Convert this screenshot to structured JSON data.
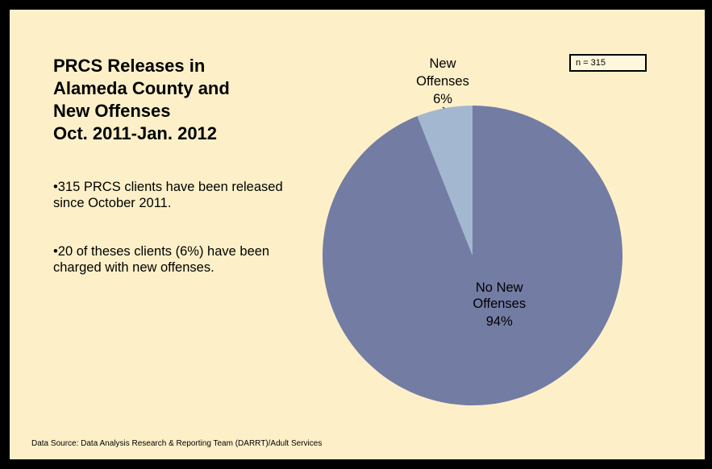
{
  "slide": {
    "title_lines": [
      "PRCS Releases in",
      "Alameda County and",
      "New Offenses",
      "Oct. 2011-Jan. 2012"
    ],
    "bullets": [
      "•315 PRCS clients have been released since October 2011.",
      "•20 of theses clients (6%) have been charged with new offenses."
    ],
    "n_label": "n = 315",
    "source": "Data Source: Data Analysis Research & Reporting Team (DARRT)/Adult Services"
  },
  "chart_data": {
    "type": "pie",
    "title": "",
    "start_angle_deg": 0,
    "direction": "clockwise",
    "slices": [
      {
        "label": "No New Offenses",
        "label_lines": [
          "No New",
          "Offenses"
        ],
        "pct_label": "94%",
        "value": 94,
        "color": "#737ca3"
      },
      {
        "label": "New Offenses",
        "label_lines": [
          "New",
          "Offenses"
        ],
        "pct_label": "6%",
        "value": 6,
        "color": "#a4b7d0"
      }
    ]
  }
}
